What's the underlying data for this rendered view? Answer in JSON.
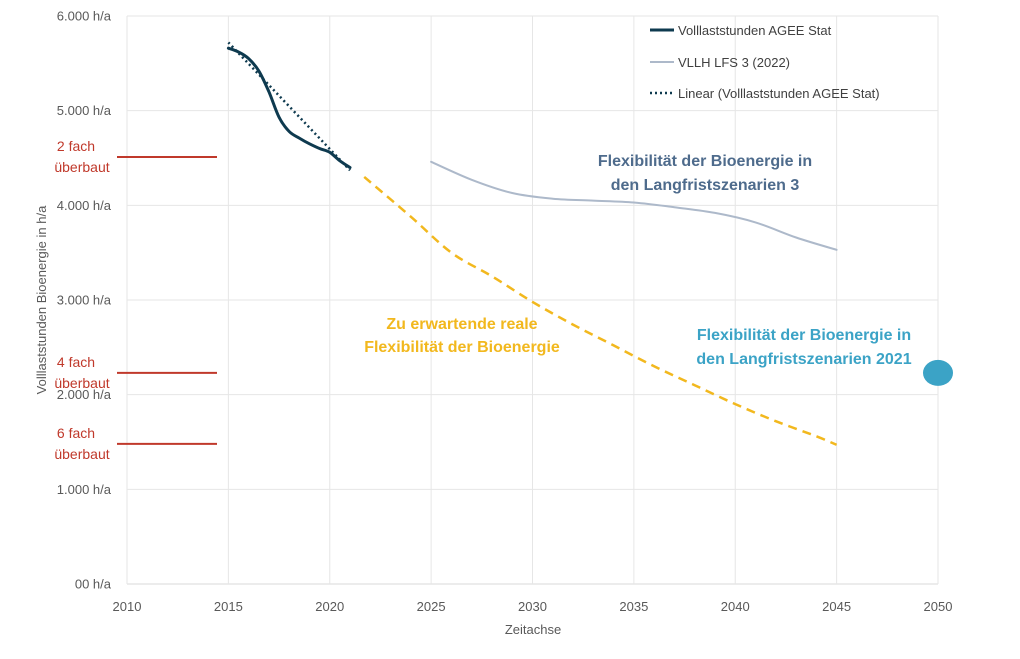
{
  "chart_data": {
    "type": "line",
    "xlabel": "Zeitachse",
    "ylabel": "Volllaststunden Bioenergie in h/a",
    "xlim": [
      2010,
      2050
    ],
    "ylim": [
      0,
      6000
    ],
    "x_ticks": [
      "2010",
      "2015",
      "2020",
      "2025",
      "2030",
      "2035",
      "2040",
      "2045",
      "2050"
    ],
    "y_ticks": [
      {
        "value": 0,
        "label": "00 h/a"
      },
      {
        "value": 1000,
        "label": "1.000 h/a"
      },
      {
        "value": 2000,
        "label": "2.000 h/a"
      },
      {
        "value": 3000,
        "label": "3.000 h/a"
      },
      {
        "value": 4000,
        "label": "4.000 h/a"
      },
      {
        "value": 5000,
        "label": "5.000 h/a"
      },
      {
        "value": 6000,
        "label": "6.000 h/a"
      }
    ],
    "grid": true,
    "legend_position": "top-right",
    "series": [
      {
        "name": "Volllaststunden AGEE Stat",
        "color": "#0e3a4f",
        "style": "solid",
        "points": [
          [
            2015,
            5660
          ],
          [
            2015.5,
            5620
          ],
          [
            2016,
            5550
          ],
          [
            2016.5,
            5420
          ],
          [
            2017,
            5200
          ],
          [
            2017.5,
            4930
          ],
          [
            2018,
            4780
          ],
          [
            2018.5,
            4710
          ],
          [
            2019,
            4650
          ],
          [
            2019.5,
            4600
          ],
          [
            2020,
            4560
          ],
          [
            2020.5,
            4470
          ],
          [
            2021,
            4400
          ]
        ],
        "legend": true
      },
      {
        "name": "VLLH LFS 3 (2022)",
        "color": "#adb9ca",
        "style": "solid",
        "points": [
          [
            2025,
            4460
          ],
          [
            2027,
            4270
          ],
          [
            2029,
            4130
          ],
          [
            2031,
            4070
          ],
          [
            2033,
            4050
          ],
          [
            2035,
            4030
          ],
          [
            2037,
            3980
          ],
          [
            2039,
            3920
          ],
          [
            2041,
            3820
          ],
          [
            2043,
            3660
          ],
          [
            2045,
            3530
          ]
        ],
        "legend": true
      },
      {
        "name": "Linear (Volllaststunden AGEE Stat)",
        "color": "#0e3a4f",
        "style": "dotted",
        "points": [
          [
            2015,
            5720
          ],
          [
            2021,
            4370
          ]
        ],
        "legend": true
      },
      {
        "color": "#f2b81e",
        "style": "dashed",
        "points": [
          [
            2021.7,
            4300
          ],
          [
            2024,
            3880
          ],
          [
            2026,
            3500
          ],
          [
            2028,
            3250
          ],
          [
            2030,
            2980
          ],
          [
            2032,
            2740
          ],
          [
            2034,
            2520
          ],
          [
            2036,
            2300
          ],
          [
            2038,
            2100
          ],
          [
            2040,
            1900
          ],
          [
            2042,
            1720
          ],
          [
            2044,
            1560
          ],
          [
            2045,
            1470
          ]
        ],
        "legend": false
      }
    ],
    "target_marker": {
      "x": 2050,
      "y": 2230,
      "color": "#3ba3c6"
    },
    "overbuild_levels": [
      {
        "label_line1": "2 fach",
        "label_line2": "überbaut",
        "value": 4510
      },
      {
        "label_line1": "4 fach",
        "label_line2": "überbaut",
        "value": 2230
      },
      {
        "label_line1": "6 fach",
        "label_line2": "überbaut",
        "value": 1480
      }
    ],
    "annotations": [
      {
        "line1": "Flexibilität der Bioenergie in",
        "line2": "den Langfristszenarien 3",
        "color": "#4e6b8c"
      },
      {
        "line1": "Zu erwartende reale",
        "line2": "Flexibilität der Bioenergie",
        "color": "#f2b81e"
      },
      {
        "line1": "Flexibilität der Bioenergie in",
        "line2": "den Langfristszenarien 2021",
        "color": "#3ba3c6"
      }
    ]
  }
}
